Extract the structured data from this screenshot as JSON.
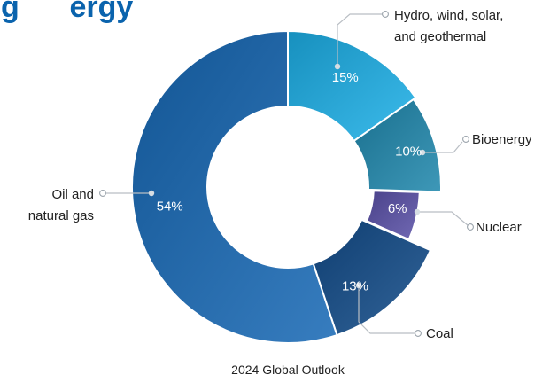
{
  "title_fragment": "g      ergy",
  "caption": "2024 Global Outlook",
  "colors": {
    "hydro": "#1cb0e8",
    "bioenergy": "#1f87ad",
    "nuclear": "#5a51a8",
    "coal": "#124c8a",
    "oil_gas": "#1668b4"
  },
  "chart_data": {
    "type": "pie",
    "title": "",
    "caption": "2024 Global Outlook",
    "categories": [
      "Hydro, wind, solar, and geothermal",
      "Bioenergy",
      "Nuclear",
      "Coal",
      "Oil and natural gas"
    ],
    "values": [
      15,
      10,
      6,
      13,
      54
    ],
    "slice_labels": [
      "15%",
      "10%",
      "6%",
      "13%",
      "54%"
    ],
    "external_labels": [
      [
        "Hydro, wind, solar,",
        "and geothermal"
      ],
      [
        "Bioenergy"
      ],
      [
        "Nuclear"
      ],
      [
        "Coal"
      ],
      [
        "Oil and",
        "natural gas"
      ]
    ],
    "donut": true,
    "legend": "none"
  }
}
